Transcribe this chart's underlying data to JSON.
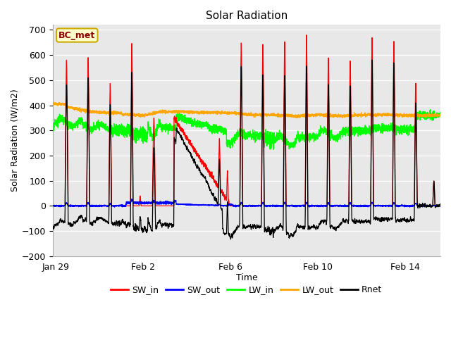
{
  "title": "Solar Radiation",
  "xlabel": "Time",
  "ylabel": "Solar Radiation (W/m2)",
  "ylim": [
    -200,
    720
  ],
  "yticks": [
    -200,
    -100,
    0,
    100,
    200,
    300,
    400,
    500,
    600,
    700
  ],
  "plot_bg_color": "#e8e8e8",
  "grid_color": "white",
  "legend_entries": [
    "SW_in",
    "SW_out",
    "LW_in",
    "LW_out",
    "Rnet"
  ],
  "legend_colors": [
    "red",
    "blue",
    "lime",
    "orange",
    "black"
  ],
  "station_label": "BC_met",
  "x_tick_positions": [
    29,
    33,
    37,
    41,
    45
  ],
  "x_tick_labels": [
    "Jan 29",
    "Feb 2",
    "Feb 6",
    "Feb 10",
    "Feb 14"
  ],
  "xlim": [
    28.85,
    46.6
  ],
  "figsize": [
    6.4,
    4.8
  ],
  "dpi": 100
}
